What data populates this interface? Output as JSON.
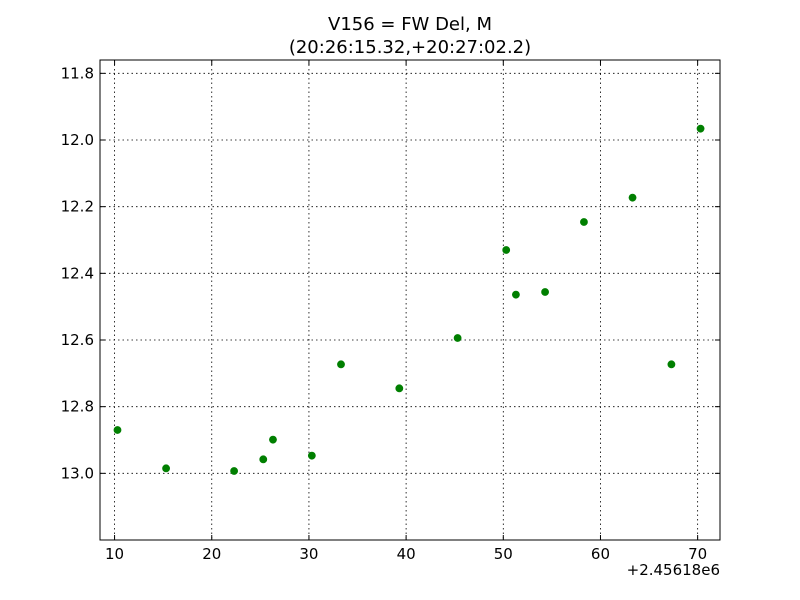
{
  "chart_data": {
    "type": "scatter",
    "title": "V156 = FW Del, M",
    "subtitle": "(20:26:15.32,+20:27:02.2)",
    "xlabel": "",
    "ylabel": "",
    "x_offset_label": "+2.45618e6",
    "xlim": [
      8.5,
      72.3
    ],
    "ylim": [
      13.2,
      11.76
    ],
    "y_inverted": true,
    "grid": true,
    "marker_color": "#007f00",
    "x_ticks": [
      10,
      20,
      30,
      40,
      50,
      60,
      70
    ],
    "x_tick_labels": [
      "10",
      "20",
      "30",
      "40",
      "50",
      "60",
      "70"
    ],
    "y_ticks": [
      11.8,
      12.0,
      12.2,
      12.4,
      12.6,
      12.8,
      13.0
    ],
    "y_tick_labels": [
      "11.8",
      "12.0",
      "12.2",
      "12.4",
      "12.6",
      "12.8",
      "13.0"
    ],
    "points": [
      {
        "x": 10.3,
        "y": 12.87
      },
      {
        "x": 15.3,
        "y": 12.985
      },
      {
        "x": 22.3,
        "y": 12.993
      },
      {
        "x": 25.3,
        "y": 12.958
      },
      {
        "x": 26.3,
        "y": 12.899
      },
      {
        "x": 30.3,
        "y": 12.947
      },
      {
        "x": 33.3,
        "y": 12.673
      },
      {
        "x": 39.3,
        "y": 12.745
      },
      {
        "x": 45.3,
        "y": 12.594
      },
      {
        "x": 50.3,
        "y": 12.33
      },
      {
        "x": 51.3,
        "y": 12.464
      },
      {
        "x": 54.3,
        "y": 12.456
      },
      {
        "x": 58.3,
        "y": 12.246
      },
      {
        "x": 63.3,
        "y": 12.173
      },
      {
        "x": 67.3,
        "y": 12.673
      },
      {
        "x": 70.3,
        "y": 11.966
      }
    ]
  }
}
